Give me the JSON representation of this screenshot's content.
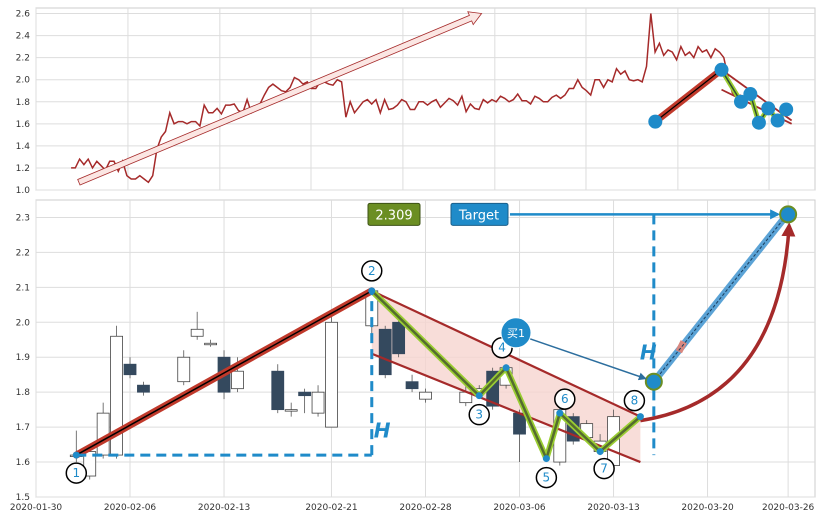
{
  "chart_data": [
    {
      "type": "line",
      "panel": "overview",
      "ylim": [
        1.0,
        2.65
      ],
      "yticks": [
        "1.0",
        "1.2",
        "1.4",
        "1.6",
        "1.8",
        "2.0",
        "2.2",
        "2.4",
        "2.6"
      ],
      "grid": true,
      "series": [
        {
          "color": "#a52a2a",
          "values": [
            1.2,
            1.2,
            1.28,
            1.23,
            1.28,
            1.2,
            1.26,
            1.22,
            1.18,
            1.26,
            1.26,
            1.17,
            1.26,
            1.13,
            1.1,
            1.1,
            1.13,
            1.1,
            1.07,
            1.13,
            1.37,
            1.48,
            1.53,
            1.7,
            1.6,
            1.62,
            1.62,
            1.6,
            1.62,
            1.62,
            1.58,
            1.77,
            1.7,
            1.7,
            1.74,
            1.69,
            1.77,
            1.77,
            1.78,
            1.72,
            1.7,
            1.82,
            1.7,
            1.73,
            1.78,
            1.86,
            1.93,
            1.96,
            1.93,
            1.9,
            1.89,
            1.93,
            2.02,
            2.0,
            1.96,
            1.98,
            1.92,
            1.92,
            1.98,
            1.98,
            1.96,
            1.95,
            2.0,
            1.98,
            1.66,
            1.8,
            1.7,
            1.75,
            1.8,
            1.82,
            1.78,
            1.82,
            1.7,
            1.82,
            1.73,
            1.74,
            1.77,
            1.82,
            1.8,
            1.73,
            1.73,
            1.8,
            1.8,
            1.77,
            1.8,
            1.82,
            1.75,
            1.79,
            1.83,
            1.81,
            1.77,
            1.85,
            1.71,
            1.78,
            1.74,
            1.73,
            1.82,
            1.79,
            1.82,
            1.8,
            1.85,
            1.83,
            1.8,
            1.82,
            1.87,
            1.81,
            1.81,
            1.78,
            1.85,
            1.83,
            1.8,
            1.8,
            1.84,
            1.86,
            1.83,
            1.86,
            1.92,
            1.92,
            2.0,
            1.93,
            1.9,
            1.86,
            2.0,
            2.0,
            1.93,
            2.0,
            1.98,
            2.1,
            2.05,
            2.08,
            2.0,
            1.99,
            2.0,
            1.98,
            2.12,
            2.6,
            2.25,
            2.33,
            2.22,
            2.27,
            2.25,
            2.18,
            2.3,
            2.22,
            2.25,
            2.2,
            2.3,
            2.25,
            2.27,
            2.2,
            2.28,
            2.25,
            2.2,
            2.02,
            1.88,
            1.85,
            1.86
          ]
        }
      ],
      "overlays": {
        "arrow": {
          "from": [
            0.055,
            1.07
          ],
          "to": [
            0.572,
            2.6
          ]
        },
        "pattern_points": [
          {
            "x": 0.795,
            "y": 1.62
          },
          {
            "x": 0.88,
            "y": 2.09
          },
          {
            "x": 0.905,
            "y": 1.8
          },
          {
            "x": 0.917,
            "y": 1.87
          },
          {
            "x": 0.928,
            "y": 1.61
          },
          {
            "x": 0.94,
            "y": 1.74
          },
          {
            "x": 0.952,
            "y": 1.63
          },
          {
            "x": 0.963,
            "y": 1.73
          }
        ]
      }
    },
    {
      "type": "candlestick",
      "panel": "detail",
      "ylim": [
        1.5,
        2.35
      ],
      "yticks": [
        "1.5",
        "1.6",
        "1.7",
        "1.8",
        "1.9",
        "2.0",
        "2.1",
        "2.2",
        "2.3"
      ],
      "x_range": [
        "2020-01-30",
        "2020-03-28"
      ],
      "xticks": [
        "2020-01-30",
        "2020-02-06",
        "2020-02-13",
        "2020-02-21",
        "2020-02-28",
        "2020-03-06",
        "2020-03-13",
        "2020-03-20",
        "2020-03-26"
      ],
      "grid": true,
      "candles": [
        {
          "date": "2020-02-02",
          "open": 1.62,
          "close": 1.62,
          "high": 1.69,
          "low": 1.6
        },
        {
          "date": "2020-02-03",
          "open": 1.56,
          "close": 1.63,
          "high": 1.65,
          "low": 1.55
        },
        {
          "date": "2020-02-04",
          "open": 1.62,
          "close": 1.74,
          "high": 1.77,
          "low": 1.61
        },
        {
          "date": "2020-02-05",
          "open": 1.62,
          "close": 1.96,
          "high": 1.99,
          "low": 1.61
        },
        {
          "date": "2020-02-06",
          "open": 1.88,
          "close": 1.85,
          "high": 1.9,
          "low": 1.84
        },
        {
          "date": "2020-02-07",
          "open": 1.82,
          "close": 1.8,
          "high": 1.83,
          "low": 1.79
        },
        {
          "date": "2020-02-10",
          "open": 1.83,
          "close": 1.9,
          "high": 1.92,
          "low": 1.82
        },
        {
          "date": "2020-02-11",
          "open": 1.96,
          "close": 1.98,
          "high": 2.03,
          "low": 1.95
        },
        {
          "date": "2020-02-12",
          "open": 1.94,
          "close": 1.94,
          "high": 1.95,
          "low": 1.93
        },
        {
          "date": "2020-02-13",
          "open": 1.9,
          "close": 1.8,
          "high": 1.92,
          "low": 1.78
        },
        {
          "date": "2020-02-14",
          "open": 1.81,
          "close": 1.86,
          "high": 1.9,
          "low": 1.8
        },
        {
          "date": "2020-02-17",
          "open": 1.86,
          "close": 1.75,
          "high": 1.88,
          "low": 1.74
        },
        {
          "date": "2020-02-18",
          "open": 1.75,
          "close": 1.75,
          "high": 1.77,
          "low": 1.73
        },
        {
          "date": "2020-02-19",
          "open": 1.8,
          "close": 1.79,
          "high": 1.81,
          "low": 1.74
        },
        {
          "date": "2020-02-20",
          "open": 1.74,
          "close": 1.8,
          "high": 1.82,
          "low": 1.73
        },
        {
          "date": "2020-02-21",
          "open": 1.7,
          "close": 2.0,
          "high": 2.02,
          "low": 1.7
        },
        {
          "date": "2020-02-24",
          "open": 1.99,
          "close": 2.09,
          "high": 2.1,
          "low": 1.95
        },
        {
          "date": "2020-02-25",
          "open": 1.98,
          "close": 1.85,
          "high": 1.99,
          "low": 1.84
        },
        {
          "date": "2020-02-26",
          "open": 2.0,
          "close": 1.91,
          "high": 2.01,
          "low": 1.9
        },
        {
          "date": "2020-02-27",
          "open": 1.83,
          "close": 1.81,
          "high": 1.85,
          "low": 1.8
        },
        {
          "date": "2020-02-28",
          "open": 1.78,
          "close": 1.8,
          "high": 1.81,
          "low": 1.77
        },
        {
          "date": "2020-03-02",
          "open": 1.77,
          "close": 1.8,
          "high": 1.82,
          "low": 1.76
        },
        {
          "date": "2020-03-03",
          "open": 1.8,
          "close": 1.81,
          "high": 1.82,
          "low": 1.79
        },
        {
          "date": "2020-03-04",
          "open": 1.86,
          "close": 1.76,
          "high": 1.87,
          "low": 1.75
        },
        {
          "date": "2020-03-05",
          "open": 1.82,
          "close": 1.87,
          "high": 1.88,
          "low": 1.81
        },
        {
          "date": "2020-03-06",
          "open": 1.74,
          "close": 1.68,
          "high": 1.75,
          "low": 1.6
        },
        {
          "date": "2020-03-09",
          "open": 1.6,
          "close": 1.75,
          "high": 1.77,
          "low": 1.59
        },
        {
          "date": "2020-03-10",
          "open": 1.73,
          "close": 1.66,
          "high": 1.74,
          "low": 1.65
        },
        {
          "date": "2020-03-11",
          "open": 1.67,
          "close": 1.71,
          "high": 1.72,
          "low": 1.66
        },
        {
          "date": "2020-03-12",
          "open": 1.63,
          "close": 1.66,
          "high": 1.68,
          "low": 1.62
        },
        {
          "date": "2020-03-13",
          "open": 1.59,
          "close": 1.73,
          "high": 1.75,
          "low": 1.59
        }
      ],
      "zigzag_points": [
        {
          "label": "1",
          "date": "2020-02-02",
          "value": 1.62
        },
        {
          "label": "2",
          "date": "2020-02-24",
          "value": 2.09
        },
        {
          "label": "3",
          "date": "2020-03-03",
          "value": 1.79
        },
        {
          "label": "4",
          "date": "2020-03-05",
          "value": 1.87
        },
        {
          "label": "5",
          "date": "2020-03-08",
          "value": 1.61
        },
        {
          "label": "6",
          "date": "2020-03-09",
          "value": 1.74
        },
        {
          "label": "7",
          "date": "2020-03-12",
          "value": 1.63
        },
        {
          "label": "8",
          "date": "2020-03-15",
          "value": 1.73
        }
      ],
      "breakout": {
        "date": "2020-03-16",
        "value": 1.83
      },
      "target": {
        "date": "2020-03-26",
        "value": 2.309
      },
      "channel": {
        "upper": [
          {
            "date": "2020-02-24",
            "value": 2.09
          },
          {
            "date": "2020-03-15",
            "value": 1.73
          }
        ],
        "lower": [
          {
            "date": "2020-02-24",
            "value": 1.91
          },
          {
            "date": "2020-03-15",
            "value": 1.6
          }
        ]
      },
      "height_marker": {
        "base": 1.62,
        "top": 2.09
      },
      "annotations": {
        "price_box": "2.309",
        "target_box": "Target",
        "buy_label": "买1",
        "h_label": "H"
      },
      "colors": {
        "rise_leg": "#c0392b",
        "zigzag": "#556b2f",
        "channel": "#a52a2a",
        "channel_fill": "#f6d5d0",
        "accent": "#1f8bc9",
        "price_box": "#6b8e23",
        "up_candle": "#ffffff",
        "down_candle": "#34495e"
      }
    }
  ]
}
